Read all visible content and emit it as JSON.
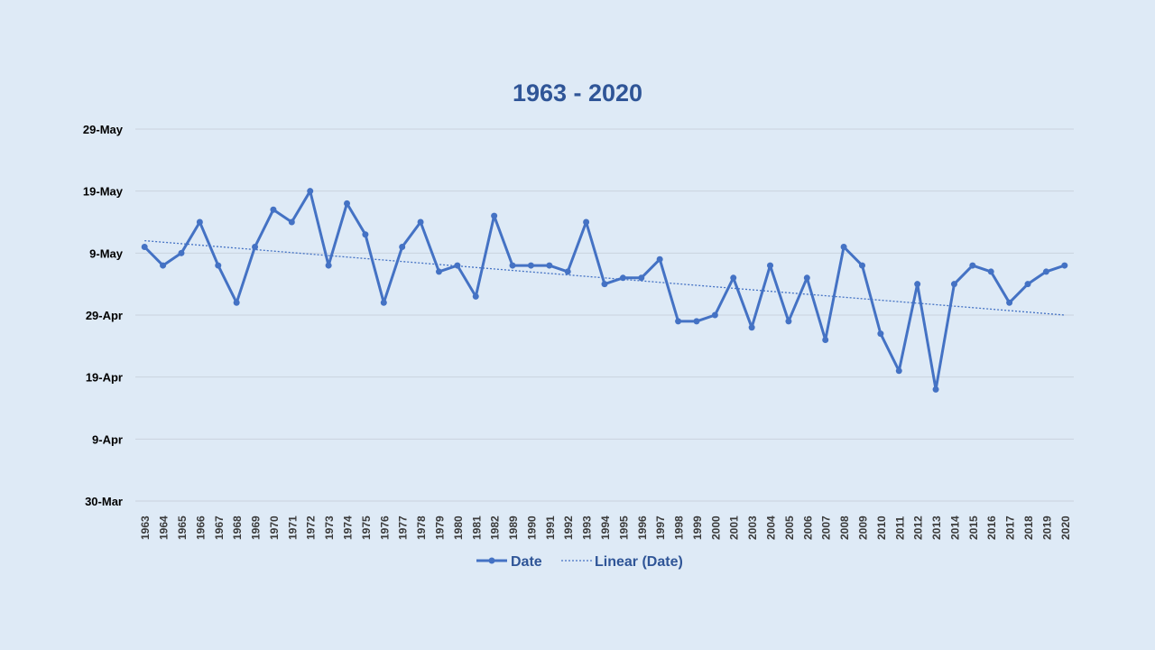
{
  "chart_data": {
    "type": "line",
    "title": "1963 - 2020",
    "xlabel": "",
    "ylabel": "",
    "categories": [
      "1963",
      "1964",
      "1965",
      "1966",
      "1967",
      "1968",
      "1969",
      "1970",
      "1971",
      "1972",
      "1973",
      "1974",
      "1975",
      "1976",
      "1977",
      "1978",
      "1979",
      "1980",
      "1981",
      "1982",
      "1989",
      "1990",
      "1991",
      "1992",
      "1993",
      "1994",
      "1995",
      "1996",
      "1997",
      "1998",
      "1999",
      "2000",
      "2001",
      "2003",
      "2004",
      "2005",
      "2006",
      "2007",
      "2008",
      "2009",
      "2010",
      "2011",
      "2012",
      "2013",
      "2014",
      "2015",
      "2016",
      "2017",
      "2018",
      "2019",
      "2020"
    ],
    "y_tick_labels": [
      "30-Mar",
      "9-Apr",
      "19-Apr",
      "29-Apr",
      "9-May",
      "19-May",
      "29-May"
    ],
    "y_tick_dates": [
      "03-30",
      "04-09",
      "04-19",
      "04-29",
      "05-09",
      "05-19",
      "05-29"
    ],
    "ylim": [
      "03-30",
      "05-29"
    ],
    "series": [
      {
        "name": "Date",
        "values": [
          "05-10",
          "05-07",
          "05-09",
          "05-14",
          "05-07",
          "05-01",
          "05-10",
          "05-16",
          "05-14",
          "05-19",
          "05-07",
          "05-17",
          "05-12",
          "05-01",
          "05-10",
          "05-14",
          "05-06",
          "05-07",
          "05-02",
          "05-15",
          "05-07",
          "05-07",
          "05-07",
          "05-06",
          "05-14",
          "05-04",
          "05-05",
          "05-05",
          "05-08",
          "04-28",
          "04-28",
          "04-29",
          "05-05",
          "04-27",
          "05-07",
          "04-28",
          "05-05",
          "04-25",
          "05-10",
          "05-07",
          "04-26",
          "04-20",
          "05-04",
          "04-17",
          "05-04",
          "05-07",
          "05-06",
          "05-01",
          "05-04",
          "05-06",
          "05-07"
        ]
      },
      {
        "name": "Linear (Date)",
        "trendline": true,
        "start": "05-11",
        "end": "04-29"
      }
    ],
    "grid": true,
    "legend": "bottom",
    "colors": {
      "line": "#4472c4",
      "grid": "#c9d3de",
      "axis_text": "#000000",
      "title": "#2f5597",
      "legend_text": "#2f5597",
      "background": "#deeaf6"
    }
  }
}
